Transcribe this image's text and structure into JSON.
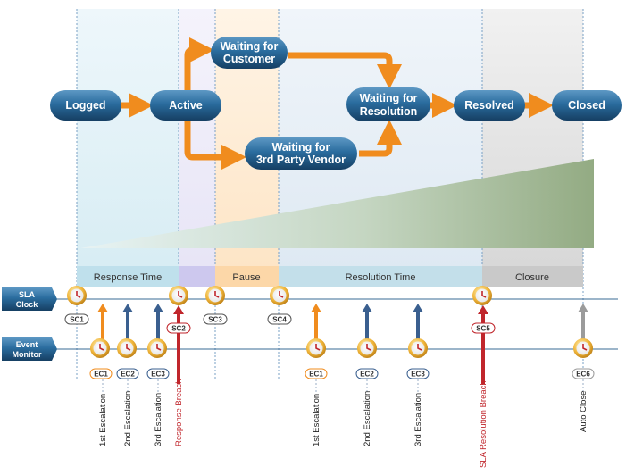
{
  "states": {
    "logged": "Logged",
    "active": "Active",
    "waiting_customer": [
      "Waiting for",
      "Customer"
    ],
    "waiting_vendor": [
      "Waiting for",
      "3rd Party Vendor"
    ],
    "waiting_resolution": [
      "Waiting for",
      "Resolution"
    ],
    "resolved": "Resolved",
    "closed": "Closed"
  },
  "phases": {
    "response_time": "Response Time",
    "pause": "Pause",
    "resolution_time": "Resolution Time",
    "closure": "Closure"
  },
  "lanes": {
    "sla_clock": [
      "SLA",
      "Clock"
    ],
    "event_monitor": [
      "Event",
      "Monitor"
    ]
  },
  "sla_clock_tags": [
    "SC1",
    "SC2",
    "SC3",
    "SC4",
    "SC5"
  ],
  "event_tags": [
    "EC1",
    "EC2",
    "EC3",
    "EC1",
    "EC2",
    "EC3",
    "EC6"
  ],
  "event_labels": {
    "first_escalation_a": "1st Escalation",
    "second_escalation_a": "2nd Escalation",
    "third_escalation_a": "3rd Escalation",
    "response_breach": "Response Breach",
    "first_escalation_b": "1st Escalation",
    "second_escalation_b": "2nd Escalation",
    "third_escalation_b": "3rd Escalation",
    "sla_resolution_breach": "SLA Resolution Breach",
    "auto_close": "Auto Close"
  },
  "colors": {
    "pill": "#1f5a86",
    "arrow": "#f08c1e",
    "breach": "#c0262c",
    "escalation_blue": "#3a5f8f",
    "grey_arrow": "#9b9b9b"
  }
}
